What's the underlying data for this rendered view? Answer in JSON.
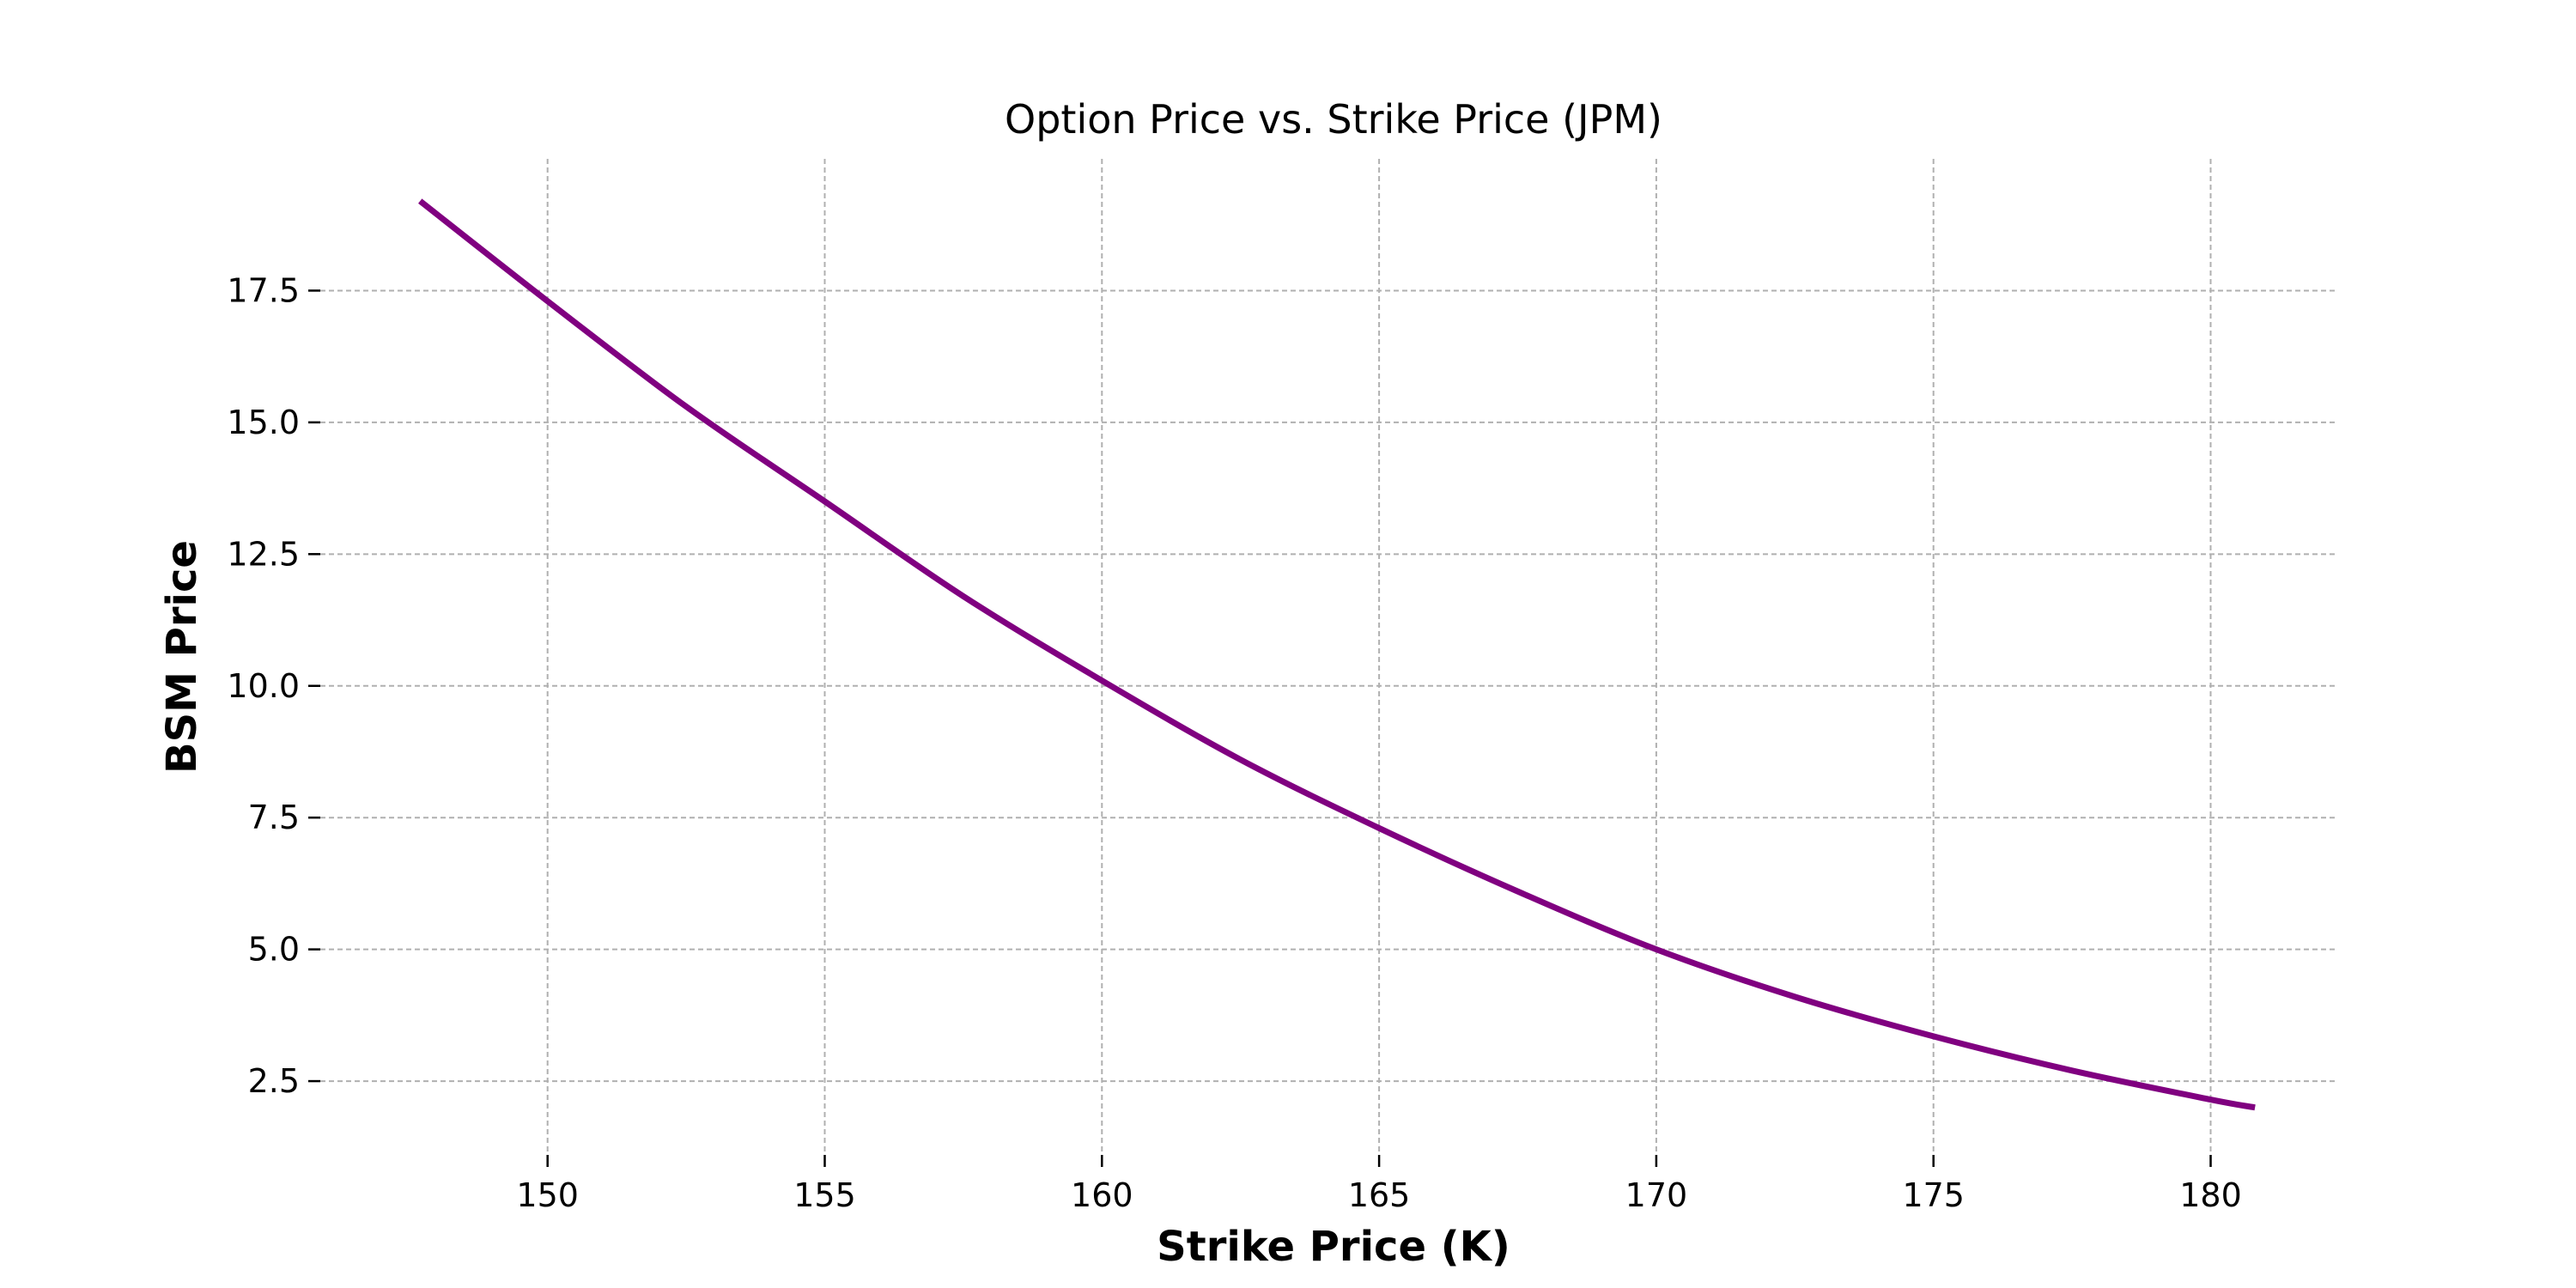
{
  "chart_data": {
    "type": "line",
    "title": "Option Price vs. Strike Price (JPM)",
    "xlabel": "Strike Price (K)",
    "ylabel": "BSM Price",
    "xlim": [
      145.9,
      182.3
    ],
    "ylim": [
      1.1,
      20.0
    ],
    "xticks": [
      150,
      155,
      160,
      165,
      170,
      175,
      180
    ],
    "xtick_labels": [
      "150",
      "155",
      "160",
      "165",
      "170",
      "175",
      "180"
    ],
    "yticks": [
      2.5,
      5.0,
      7.5,
      10.0,
      12.5,
      15.0,
      17.5
    ],
    "ytick_labels": [
      "2.5",
      "5.0",
      "7.5",
      "10.0",
      "12.5",
      "15.0",
      "17.5"
    ],
    "grid": true,
    "series": [
      {
        "color": "#800080",
        "x": [
          147.7,
          150.0,
          152.5,
          155.0,
          157.5,
          160.0,
          162.5,
          165.0,
          167.5,
          170.0,
          172.5,
          175.0,
          177.5,
          180.0,
          180.8
        ],
        "y": [
          19.2,
          17.3,
          15.3,
          13.5,
          11.7,
          10.1,
          8.6,
          7.3,
          6.1,
          5.0,
          4.1,
          3.35,
          2.7,
          2.15,
          2.0
        ]
      }
    ]
  }
}
